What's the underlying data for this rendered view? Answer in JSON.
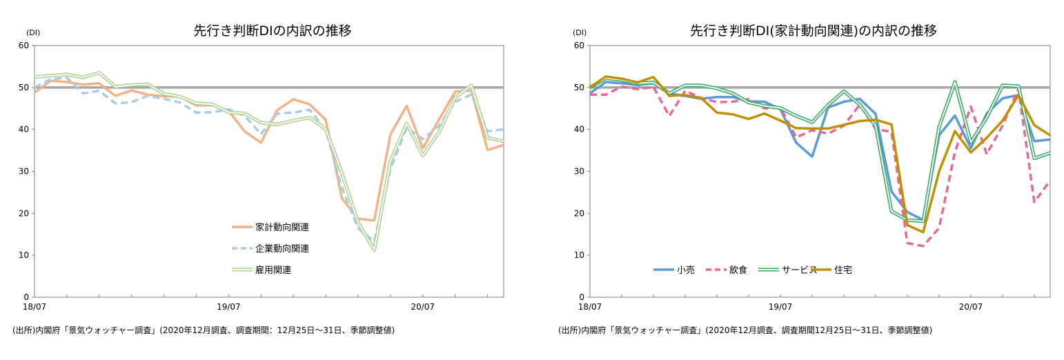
{
  "chart_data": [
    {
      "type": "line",
      "title": "先行き判断DIの内訳の推移",
      "y_unit_label": "(DI)",
      "ylim": [
        0,
        60
      ],
      "y_ticks": [
        "0",
        "10",
        "20",
        "30",
        "40",
        "50",
        "60"
      ],
      "x_tick_labels": [
        "18/07",
        "19/07",
        "20/07"
      ],
      "x": [
        "18/07",
        "18/08",
        "18/09",
        "18/10",
        "18/11",
        "18/12",
        "19/01",
        "19/02",
        "19/03",
        "19/04",
        "19/05",
        "19/06",
        "19/07",
        "19/08",
        "19/09",
        "19/10",
        "19/11",
        "19/12",
        "20/01",
        "20/02",
        "20/03",
        "20/04",
        "20/05",
        "20/06",
        "20/07",
        "20/08",
        "20/09",
        "20/10",
        "20/11",
        "20/12"
      ],
      "reference_line": 50,
      "grid": false,
      "legend_position": "center-bottom",
      "series": [
        {
          "name": "家計動向関連",
          "color": "#F4B183",
          "style": "solid",
          "values": [
            48.8,
            51.6,
            51.3,
            50.7,
            51.0,
            48.0,
            49.3,
            48.3,
            47.9,
            47.8,
            45.7,
            45.8,
            44.4,
            39.5,
            36.8,
            44.6,
            47.2,
            46.0,
            42.3,
            23.6,
            18.7,
            18.3,
            38.8,
            45.6,
            35.5,
            42.3,
            49.0,
            49.3,
            35.1,
            36.3
          ]
        },
        {
          "name": "企業動向関連",
          "color": "#A9CBE8",
          "style": "dashed",
          "values": [
            50.0,
            52.0,
            52.3,
            48.6,
            49.2,
            46.2,
            46.5,
            48.0,
            47.3,
            46.4,
            44.0,
            44.1,
            44.8,
            43.2,
            38.9,
            43.8,
            44.0,
            44.7,
            39.8,
            26.2,
            16.4,
            13.3,
            30.6,
            40.4,
            37.7,
            40.8,
            46.6,
            48.3,
            39.6,
            40.0
          ]
        },
        {
          "name": "雇用関連",
          "color": "#A9D18E",
          "style": "double",
          "values": [
            52.5,
            52.8,
            53.1,
            52.4,
            53.5,
            50.2,
            50.6,
            50.8,
            48.5,
            47.8,
            46.2,
            46.0,
            44.1,
            43.8,
            41.6,
            41.2,
            42.1,
            42.8,
            40.1,
            29.6,
            17.8,
            11.3,
            32.5,
            41.4,
            33.8,
            39.3,
            47.6,
            50.5,
            38.0,
            37.2
          ]
        }
      ]
    },
    {
      "type": "line",
      "title": "先行き判断DI(家計動向関連)の内訳の推移",
      "y_unit_label": "(DI)",
      "ylim": [
        0,
        60
      ],
      "y_ticks": [
        "0",
        "10",
        "20",
        "30",
        "40",
        "50",
        "60"
      ],
      "x_tick_labels": [
        "18/07",
        "19/07",
        "20/07"
      ],
      "x": [
        "18/07",
        "18/08",
        "18/09",
        "18/10",
        "18/11",
        "18/12",
        "19/01",
        "19/02",
        "19/03",
        "19/04",
        "19/05",
        "19/06",
        "19/07",
        "19/08",
        "19/09",
        "19/10",
        "19/11",
        "19/12",
        "20/01",
        "20/02",
        "20/03",
        "20/04",
        "20/05",
        "20/06",
        "20/07",
        "20/08",
        "20/09",
        "20/10",
        "20/11",
        "20/12"
      ],
      "reference_line": 50,
      "grid": false,
      "legend_position": "bottom-left",
      "series": [
        {
          "name": "小売",
          "color": "#5B9BD5",
          "style": "solid",
          "values": [
            48.6,
            51.3,
            51.0,
            50.6,
            51.0,
            48.6,
            48.0,
            47.3,
            47.7,
            47.7,
            46.7,
            46.6,
            44.8,
            36.8,
            33.5,
            45.2,
            46.6,
            47.3,
            43.7,
            25.2,
            20.3,
            18.4,
            38.6,
            43.3,
            35.5,
            43.8,
            47.4,
            48.2,
            37.2,
            37.6
          ]
        },
        {
          "name": "飲食",
          "color": "#E7679C",
          "style": "dashed",
          "values": [
            48.3,
            48.3,
            50.2,
            49.6,
            50.1,
            43.2,
            49.2,
            47.5,
            46.5,
            46.6,
            47.2,
            45.0,
            45.2,
            38.1,
            39.8,
            39.0,
            40.9,
            45.9,
            40.1,
            39.4,
            12.9,
            12.2,
            16.5,
            34.6,
            45.4,
            34.1,
            40.9,
            49.7,
            22.7,
            27.8
          ]
        },
        {
          "name": "サービス",
          "color": "#2EAA5B",
          "style": "double",
          "values": [
            50.0,
            52.2,
            51.8,
            51.0,
            51.2,
            48.6,
            50.5,
            50.5,
            49.8,
            48.6,
            46.4,
            45.6,
            45.1,
            43.2,
            41.7,
            45.8,
            49.1,
            45.9,
            40.9,
            20.5,
            18.4,
            18.1,
            40.6,
            51.3,
            36.9,
            42.8,
            50.5,
            50.3,
            33.1,
            34.4
          ]
        },
        {
          "name": "住宅",
          "color": "#BF9000",
          "style": "solid",
          "values": [
            50.0,
            52.6,
            52.1,
            51.2,
            52.5,
            48.0,
            48.2,
            47.5,
            44.0,
            43.6,
            42.5,
            43.8,
            42.1,
            40.3,
            40.2,
            40.2,
            41.1,
            42.0,
            42.3,
            41.2,
            17.2,
            15.5,
            30.0,
            39.6,
            34.5,
            38.0,
            42.1,
            48.2,
            41.0,
            38.6
          ]
        }
      ]
    }
  ],
  "source_notes": [
    "(出所)内閣府「景気ウォッチャー調査」(2020年12月調査、調査期間：12月25日～31日、季節調整値)",
    "(出所)内閣府「景気ウォッチャー調査」(2020年12月調査、調査期間12月25日～31日、季節調整値)"
  ]
}
